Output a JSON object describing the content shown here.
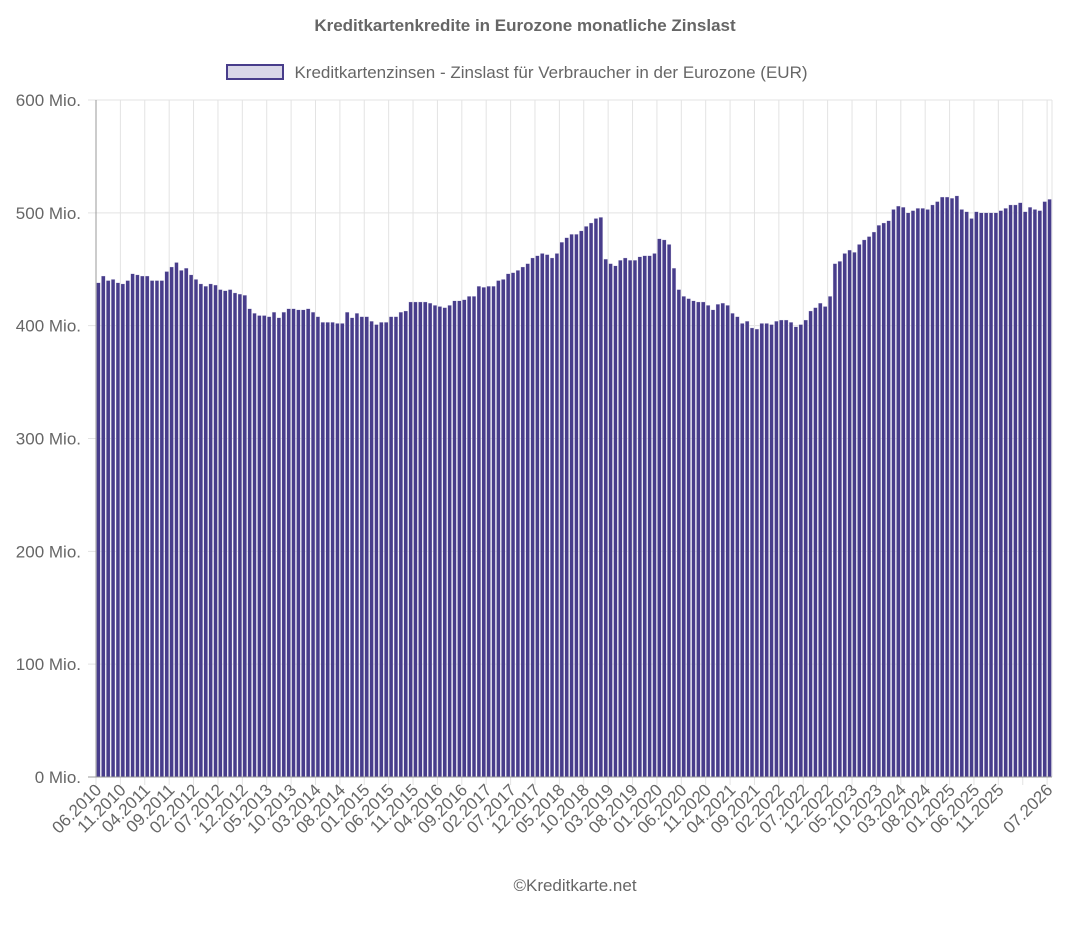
{
  "footer": "©Kreditkarte.net",
  "chart_data": {
    "type": "bar",
    "title": "Kreditkartenkredite in Eurozone monatliche Zinslast",
    "legend_position": "top",
    "grid": true,
    "ylim": [
      0,
      600000000
    ],
    "y_ticks": [
      {
        "value": 0,
        "label": "0 Mio."
      },
      {
        "value": 100000000,
        "label": "100 Mio."
      },
      {
        "value": 200000000,
        "label": "200 Mio."
      },
      {
        "value": 300000000,
        "label": "300 Mio."
      },
      {
        "value": 400000000,
        "label": "400 Mio."
      },
      {
        "value": 500000000,
        "label": "500 Mio."
      },
      {
        "value": 600000000,
        "label": "600 Mio."
      }
    ],
    "colors": {
      "bar_fill": "#483d8b",
      "bar_stroke": "#e8e6f3",
      "legend_fill": "#d9d7e8",
      "legend_stroke": "#483d8b",
      "grid": "#e3e3e3",
      "axis": "#999999"
    },
    "start_month": "06.2010",
    "categories": [
      "06.2010",
      "11.2010",
      "04.2011",
      "09.2011",
      "02.2012",
      "07.2012",
      "12.2012",
      "05.2013",
      "10.2013",
      "03.2014",
      "08.2014",
      "01.2015",
      "06.2015",
      "11.2015",
      "04.2016",
      "09.2016",
      "02.2017",
      "07.2017",
      "12.2017",
      "05.2018",
      "10.2018",
      "03.2019",
      "08.2019",
      "01.2020",
      "06.2020",
      "11.2020",
      "04.2021",
      "09.2021",
      "02.2022",
      "07.2022",
      "12.2022",
      "05.2023",
      "10.2023",
      "03.2024",
      "08.2024",
      "01.2025",
      "06.2025",
      "11.2025",
      "07.2026"
    ],
    "series": [
      {
        "name": "Kreditkartenzinsen - Zinslast für Verbraucher in der Eurozone (EUR)",
        "values_mio": [
          438,
          444,
          440,
          441,
          438,
          437,
          440,
          446,
          445,
          444,
          444,
          440,
          440,
          440,
          448,
          452,
          456,
          449,
          451,
          445,
          441,
          437,
          435,
          437,
          436,
          432,
          431,
          432,
          429,
          428,
          427,
          415,
          411,
          409,
          409,
          408,
          412,
          407,
          412,
          415,
          415,
          414,
          414,
          415,
          412,
          408,
          403,
          403,
          403,
          402,
          402,
          412,
          407,
          411,
          408,
          408,
          404,
          401,
          403,
          403,
          408,
          408,
          412,
          413,
          421,
          421,
          421,
          421,
          420,
          418,
          417,
          416,
          418,
          422,
          422,
          423,
          426,
          426,
          435,
          434,
          435,
          435,
          440,
          441,
          446,
          447,
          449,
          452,
          455,
          460,
          462,
          464,
          463,
          460,
          464,
          474,
          478,
          481,
          481,
          484,
          488,
          491,
          495,
          496,
          459,
          455,
          453,
          458,
          460,
          458,
          458,
          461,
          462,
          462,
          464,
          477,
          476,
          472,
          451,
          432,
          426,
          424,
          422,
          421,
          421,
          418,
          414,
          419,
          420,
          418,
          411,
          408,
          402,
          404,
          398,
          397,
          402,
          402,
          401,
          404,
          405,
          405,
          403,
          399,
          401,
          405,
          413,
          416,
          420,
          417,
          426,
          455,
          457,
          464,
          467,
          465,
          472,
          476,
          479,
          483,
          489,
          491,
          493,
          503,
          506,
          505,
          500,
          502,
          504,
          504,
          503,
          507,
          510,
          514,
          514,
          513,
          515,
          503,
          501,
          495,
          501,
          500,
          500,
          500,
          500,
          502,
          504,
          507,
          507,
          509,
          501,
          505,
          503,
          502,
          510,
          512
        ]
      }
    ]
  }
}
